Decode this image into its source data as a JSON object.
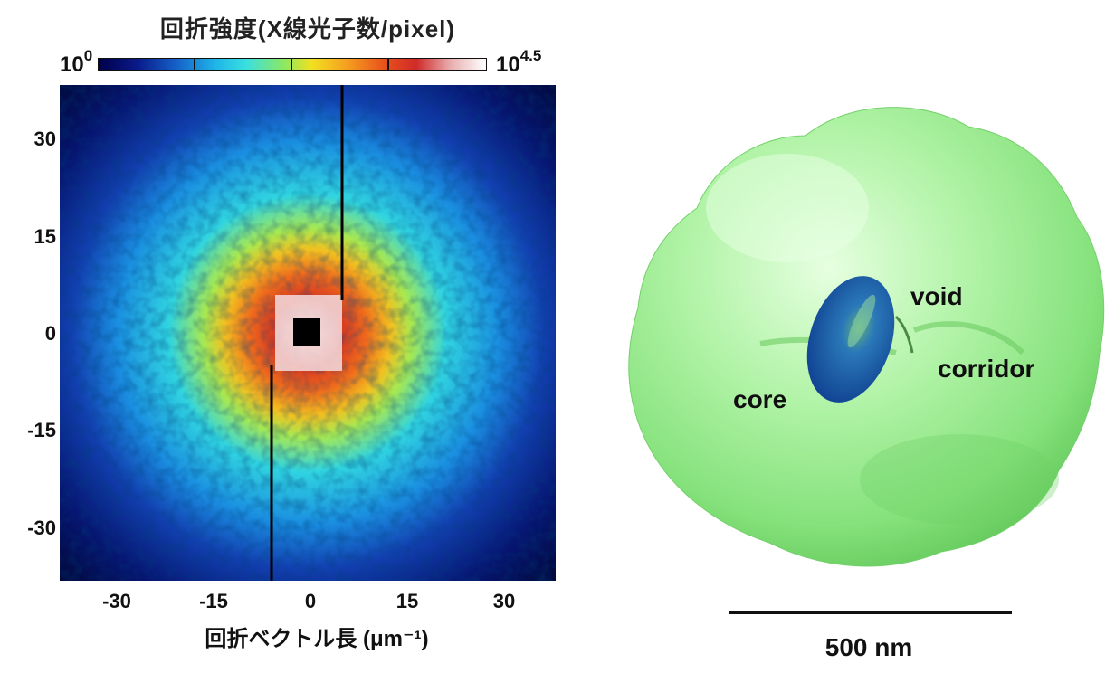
{
  "colorbar": {
    "title": "回折強度(X線光子数/pixel)",
    "min_base": "10",
    "min_exp": "0",
    "max_base": "10",
    "max_exp": "4.5",
    "colormap": [
      "#00004a",
      "#1560c8",
      "#38e0e0",
      "#f2e020",
      "#e8501c",
      "#d02a2a",
      "#ffffff"
    ]
  },
  "pattern": {
    "y_ticks": [
      "30",
      "15",
      "0",
      "-15",
      "-30"
    ],
    "x_ticks": [
      "-30",
      "-15",
      "0",
      "15",
      "30"
    ],
    "xlabel": "回折ベクトル長 (μm⁻¹)",
    "extent": [
      -38,
      38
    ]
  },
  "model": {
    "labels": {
      "core": "core",
      "void": "void",
      "corridor": "corridor"
    },
    "scale_bar_label": "500 nm",
    "colors": {
      "shell": "#90f090",
      "core": "#1e5fb0"
    }
  }
}
